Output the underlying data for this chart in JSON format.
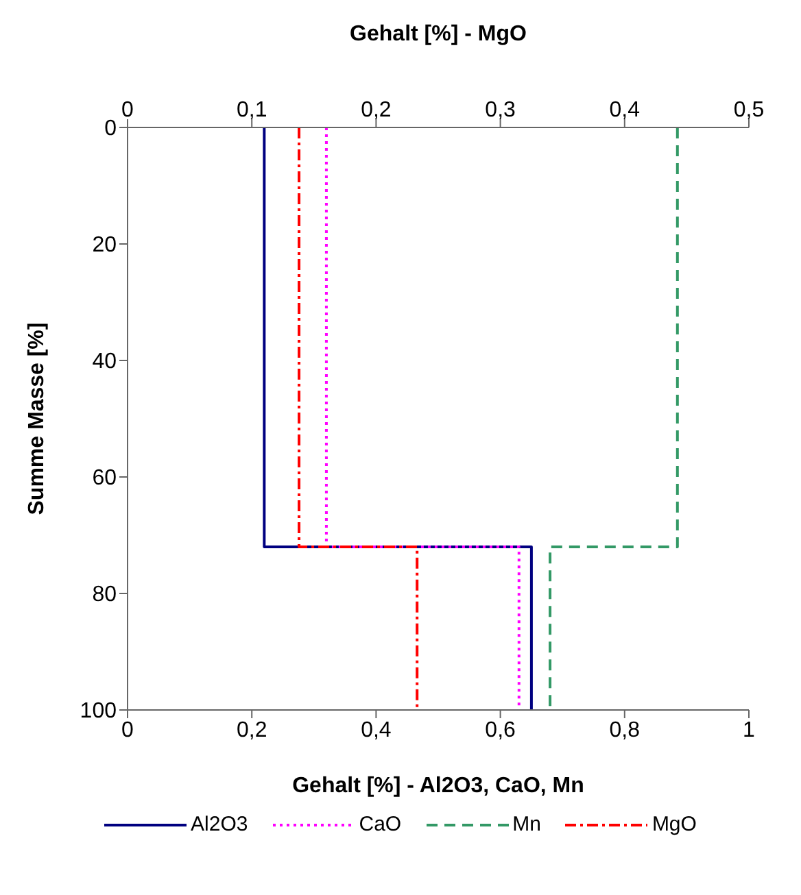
{
  "chart_data": {
    "type": "line",
    "xlabel": "Gehalt [%] - Al2O3, CaO, Mn",
    "x2label": "Gehalt [%] - MgO",
    "ylabel": "Summe Masse [%]",
    "xlim": [
      0,
      1
    ],
    "xticks": [
      0,
      {
        "value": 0.2,
        "label": "0,2"
      },
      {
        "value": 0.4,
        "label": "0,4"
      },
      {
        "value": 0.6,
        "label": "0,6"
      },
      {
        "value": 0.8,
        "label": "0,8"
      },
      1
    ],
    "x2lim": [
      0,
      0.5
    ],
    "x2ticks": [
      0,
      {
        "value": 0.1,
        "label": "0,1"
      },
      {
        "value": 0.2,
        "label": "0,2"
      },
      {
        "value": 0.3,
        "label": "0,3"
      },
      {
        "value": 0.4,
        "label": "0,4"
      },
      {
        "value": 0.5,
        "label": "0,5"
      }
    ],
    "ylim": [
      100,
      0
    ],
    "yticks": [
      0,
      20,
      40,
      60,
      80,
      100
    ],
    "legend": "bottom",
    "marker": "none",
    "series": [
      {
        "name": "Al2O3",
        "color": "#000080",
        "line_style": "solid",
        "x": [
          0.22,
          0.22,
          0.65,
          0.65
        ],
        "values": [
          0,
          72,
          72,
          100
        ]
      },
      {
        "name": "CaO",
        "color": "#ff00ff",
        "line_style": "dotted",
        "x": [
          0.32,
          0.32,
          0.63,
          0.63
        ],
        "values": [
          0,
          72,
          72,
          100
        ]
      },
      {
        "name": "Mn",
        "color": "#339966",
        "line_style": "dashed",
        "x": [
          0.885,
          0.885,
          0.68,
          0.68
        ],
        "values": [
          0,
          72,
          72,
          100
        ]
      },
      {
        "name": "MgO",
        "color": "#ff0000",
        "line_style": "dashdot",
        "axis": "x2",
        "x": [
          0.138,
          0.138,
          0.233,
          0.233
        ],
        "values": [
          0,
          72,
          72,
          100
        ]
      }
    ]
  }
}
